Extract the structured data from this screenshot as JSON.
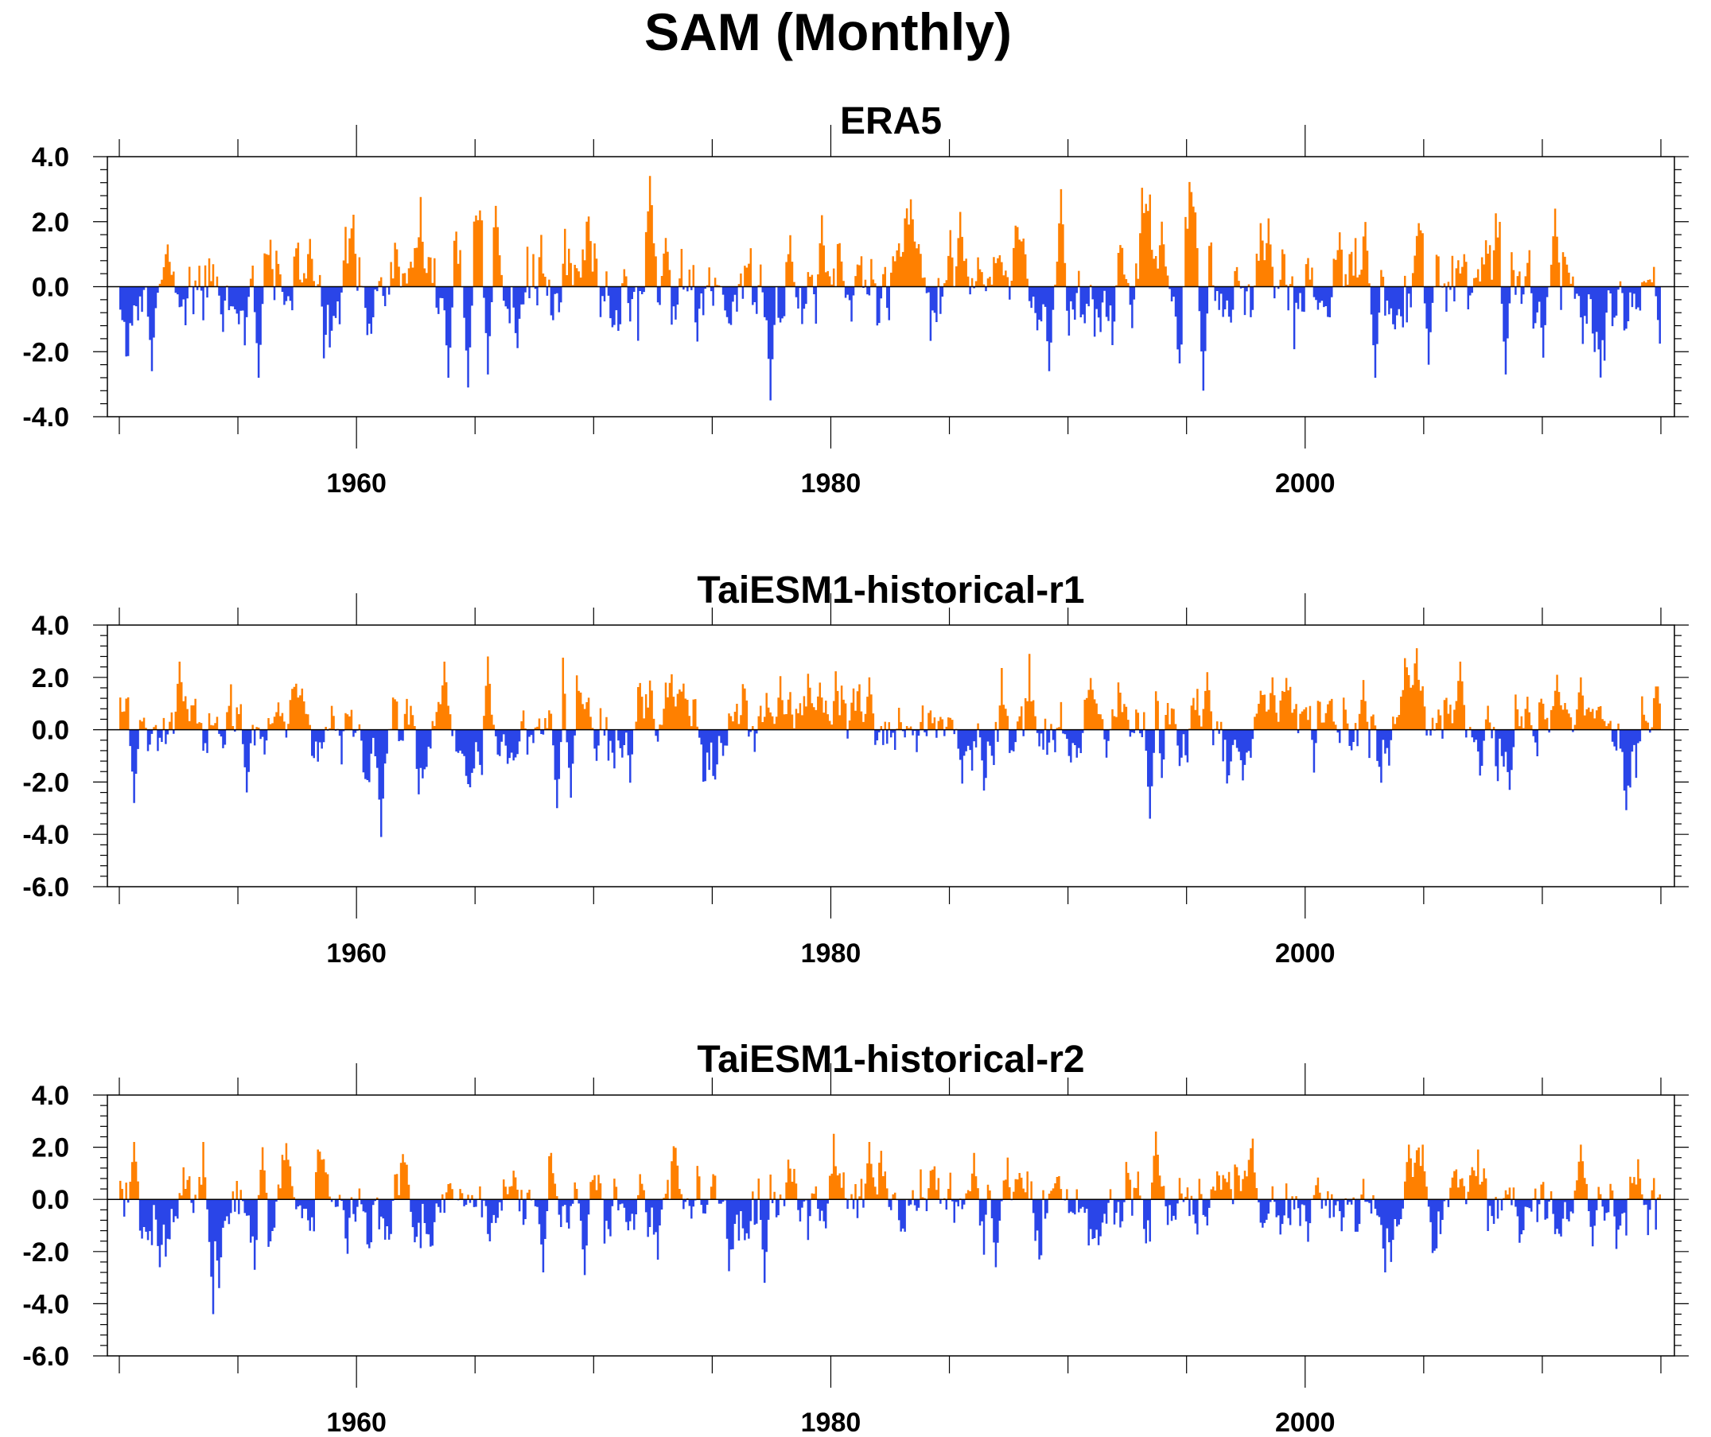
{
  "title": "SAM (Monthly)",
  "colors": {
    "positive": "#ff8000",
    "negative": "#2a45e8",
    "axis": "#000000"
  },
  "chart_data": [
    {
      "type": "bar",
      "title": "ERA5",
      "x_range": [
        1950,
        2015
      ],
      "ylim": [
        -4.0,
        4.0
      ],
      "yticks": [
        4.0,
        2.0,
        0.0,
        -2.0,
        -4.0
      ],
      "ytick_labels": [
        "4.0",
        "2.0",
        "0.0",
        "-2.0",
        "-4.0"
      ],
      "xticks": [
        1960,
        1980,
        2000
      ],
      "xtick_labels": [
        "1960",
        "1980",
        "2000"
      ],
      "grid": false,
      "seed": 11,
      "anchors": [
        [
          1951.3,
          -2.6
        ],
        [
          1952.0,
          1.3
        ],
        [
          1955.8,
          -2.8
        ],
        [
          1963.8,
          -2.8
        ],
        [
          1964.7,
          -3.1
        ],
        [
          1965.5,
          -2.7
        ],
        [
          1973.0,
          1.5
        ],
        [
          1977.4,
          -3.5
        ],
        [
          1979.6,
          2.2
        ],
        [
          1985.4,
          2.3
        ],
        [
          1989.2,
          -2.6
        ],
        [
          1989.7,
          3.0
        ],
        [
          1993.9,
          2.0
        ],
        [
          1995.7,
          -3.2
        ],
        [
          1998.4,
          2.1
        ],
        [
          2002.9,
          -2.8
        ],
        [
          2005.2,
          -2.4
        ],
        [
          2008.4,
          -2.7
        ],
        [
          2010.5,
          2.4
        ]
      ]
    },
    {
      "type": "bar",
      "title": "TaiESM1-historical-r1",
      "x_range": [
        1950,
        2015
      ],
      "ylim": [
        -6.0,
        4.0
      ],
      "yticks": [
        4.0,
        2.0,
        0.0,
        -2.0,
        -4.0,
        -6.0
      ],
      "ytick_labels": [
        "4.0",
        "2.0",
        "0.0",
        "-2.0",
        "-4.0",
        "-6.0"
      ],
      "xticks": [
        1960,
        1980,
        2000
      ],
      "xtick_labels": [
        "1960",
        "1980",
        "2000"
      ],
      "grid": false,
      "seed": 23,
      "anchors": [
        [
          1950.6,
          -2.8
        ],
        [
          1952.5,
          2.6
        ],
        [
          1955.3,
          -2.4
        ],
        [
          1963.7,
          2.6
        ],
        [
          1961.0,
          -4.1
        ],
        [
          1965.5,
          2.8
        ],
        [
          1968.4,
          -3.0
        ],
        [
          1969.0,
          -2.6
        ],
        [
          1979.5,
          1.8
        ],
        [
          1981.6,
          2.0
        ],
        [
          1993.4,
          -3.4
        ],
        [
          1995.8,
          2.2
        ],
        [
          1998.6,
          2.0
        ],
        [
          2002.4,
          1.9
        ],
        [
          2006.5,
          2.6
        ],
        [
          2008.6,
          -2.3
        ],
        [
          2010.6,
          2.1
        ],
        [
          2011.6,
          2.0
        ]
      ]
    },
    {
      "type": "bar",
      "title": "TaiESM1-historical-r2",
      "x_range": [
        1950,
        2015
      ],
      "ylim": [
        -6.0,
        4.0
      ],
      "yticks": [
        4.0,
        2.0,
        0.0,
        -2.0,
        -4.0,
        -6.0
      ],
      "ytick_labels": [
        "4.0",
        "2.0",
        "0.0",
        "-2.0",
        "-4.0",
        "-6.0"
      ],
      "xticks": [
        1960,
        1980,
        2000
      ],
      "xtick_labels": [
        "1960",
        "1980",
        "2000"
      ],
      "grid": false,
      "seed": 37,
      "anchors": [
        [
          1950.6,
          2.2
        ],
        [
          1951.7,
          -2.6
        ],
        [
          1953.9,
          -4.4
        ],
        [
          1954.2,
          -3.4
        ],
        [
          1956.0,
          2.0
        ],
        [
          1967.8,
          -2.8
        ],
        [
          1969.6,
          -2.9
        ],
        [
          1977.2,
          -3.2
        ],
        [
          1981.6,
          2.2
        ],
        [
          1986.9,
          -2.6
        ],
        [
          1993.7,
          2.6
        ],
        [
          2003.3,
          -2.8
        ],
        [
          2003.6,
          -2.4
        ],
        [
          2004.3,
          2.1
        ],
        [
          2011.6,
          2.1
        ],
        [
          2012.1,
          -1.8
        ]
      ]
    }
  ]
}
